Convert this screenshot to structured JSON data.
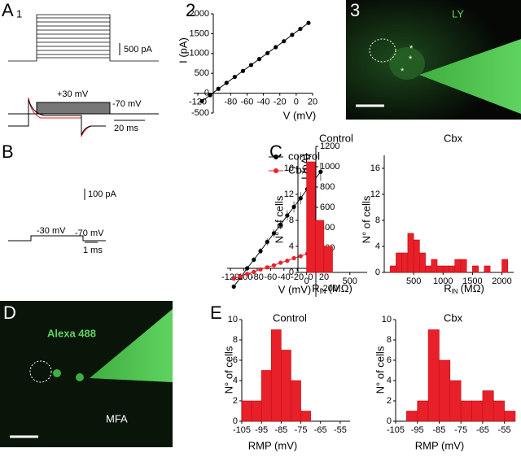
{
  "panels": {
    "A": {
      "letter": "A",
      "number": "1",
      "scale_current": "500 pA",
      "step_voltage": "+30 mV",
      "hold_voltage": "-70 mV",
      "scale_time": "20 ms"
    },
    "A2": {
      "number": "2"
    },
    "A3": {
      "number": "3",
      "dye": "LY",
      "markers": [
        "*",
        "*",
        "*"
      ]
    },
    "B": {
      "letter": "B",
      "scale_current": "100 pA",
      "step_voltage": "-30 mV",
      "hold_voltage": "-70 mV",
      "scale_time": "1 ms"
    },
    "C": {
      "letter": "C"
    },
    "D": {
      "letter": "D",
      "dye": "Alexa 488",
      "region": "MFA"
    },
    "E": {
      "letter": "E"
    }
  },
  "chart_data": [
    {
      "type": "line",
      "xlabel": "V (mV)",
      "ylabel": "I (pA)",
      "x": [
        -115,
        -105,
        -95,
        -85,
        -75,
        -65,
        -55,
        -45,
        -35,
        -25,
        -15,
        -5,
        5,
        15
      ],
      "series": [
        {
          "color": "#000000",
          "values": [
            -200,
            -50,
            110,
            260,
            410,
            560,
            710,
            860,
            1010,
            1160,
            1310,
            1470,
            1620,
            1770
          ]
        }
      ],
      "xlim": [
        -125,
        20
      ],
      "ylim": [
        -500,
        2000
      ],
      "xticks": [
        -120,
        -80,
        -60,
        -40,
        -20,
        0,
        20
      ],
      "yticks": [
        -500,
        0,
        500,
        1000,
        1500,
        2000
      ]
    },
    {
      "type": "line",
      "xlabel": "V (mV)",
      "ylabel": "I (pA)",
      "legend": "top-left",
      "x": [
        -115,
        -105,
        -95,
        -85,
        -75,
        -65,
        -55,
        -45,
        -35,
        -25,
        -15,
        -5,
        5,
        15
      ],
      "series": [
        {
          "name": "control",
          "color": "#000000",
          "values": [
            -180,
            -90,
            0,
            85,
            170,
            260,
            345,
            430,
            520,
            605,
            690,
            780,
            865,
            950
          ],
          "errors": [
            20,
            20,
            25,
            25,
            30,
            35,
            40,
            45,
            50,
            55,
            60,
            70,
            80,
            90
          ]
        },
        {
          "name": "Cbx",
          "color": "#e8202a",
          "values": [
            -100,
            -80,
            -55,
            -35,
            -10,
            10,
            30,
            55,
            75,
            100,
            120,
            145,
            165,
            180
          ]
        }
      ],
      "xlim": [
        -125,
        20
      ],
      "ylim": [
        -280,
        1200
      ],
      "xticks": [
        -120,
        -100,
        -80,
        -60,
        -40,
        -20,
        0,
        20
      ],
      "yticks": [
        -200,
        0,
        200,
        400,
        600,
        800,
        1000,
        1200
      ]
    },
    {
      "type": "histogram",
      "title": "Control",
      "ylabel": "N° of cells",
      "xlabel": {
        "main": "R",
        "sub": "IN",
        "unit": "(MΩ)"
      },
      "color": "#e8202a",
      "bins": [
        0,
        100,
        200,
        300
      ],
      "counts": [
        17,
        8,
        4
      ],
      "xlim": [
        -100,
        700
      ],
      "ylim": [
        0,
        18
      ],
      "xticks": [
        0,
        500
      ],
      "yticks": [
        0,
        4,
        8,
        12,
        16
      ]
    },
    {
      "type": "histogram",
      "title": "Cbx",
      "ylabel": "N° of cells",
      "xlabel": {
        "main": "R",
        "sub": "IN",
        "unit": "(MΩ)"
      },
      "color": "#e8202a",
      "bins": [
        100,
        200,
        300,
        400,
        500,
        600,
        700,
        800,
        900,
        1000,
        1100,
        1200,
        1300,
        1400,
        1500,
        1600,
        1700,
        1800,
        1900,
        2000,
        2100
      ],
      "counts": [
        1,
        3,
        3,
        6,
        5,
        3,
        1,
        2,
        1,
        1,
        1,
        2,
        2,
        0,
        1,
        0,
        1,
        0,
        0,
        2
      ],
      "xlim": [
        0,
        2200
      ],
      "ylim": [
        0,
        18
      ],
      "xticks": [
        500,
        1000,
        1500,
        2000
      ],
      "yticks": [
        0,
        4,
        8,
        12,
        16
      ]
    },
    {
      "type": "histogram",
      "title": "Control",
      "ylabel": "N° of cells",
      "xlabel": "RMP (mV)",
      "color": "#e8202a",
      "bins": [
        -105,
        -100,
        -95,
        -90,
        -85,
        -80,
        -75,
        -70
      ],
      "counts": [
        2,
        2,
        5,
        9,
        7,
        4,
        1
      ],
      "xlim": [
        -105,
        -50
      ],
      "ylim": [
        0,
        10
      ],
      "xticks": [
        -105,
        -95,
        -85,
        -75,
        -65,
        -55
      ],
      "yticks": [
        0,
        2,
        4,
        6,
        8,
        10
      ]
    },
    {
      "type": "histogram",
      "title": "Cbx",
      "ylabel": "N° of cells",
      "xlabel": "RMP (mV)",
      "color": "#e8202a",
      "bins": [
        -100,
        -95,
        -90,
        -85,
        -80,
        -75,
        -70,
        -65,
        -60,
        -55,
        -50
      ],
      "counts": [
        1,
        2,
        9,
        6,
        4,
        2,
        2,
        3,
        2,
        1
      ],
      "xlim": [
        -105,
        -50
      ],
      "ylim": [
        0,
        10
      ],
      "xticks": [
        -105,
        -95,
        -85,
        -75,
        -65,
        -55
      ],
      "yticks": [
        0,
        2,
        4,
        6,
        8,
        10
      ]
    }
  ]
}
